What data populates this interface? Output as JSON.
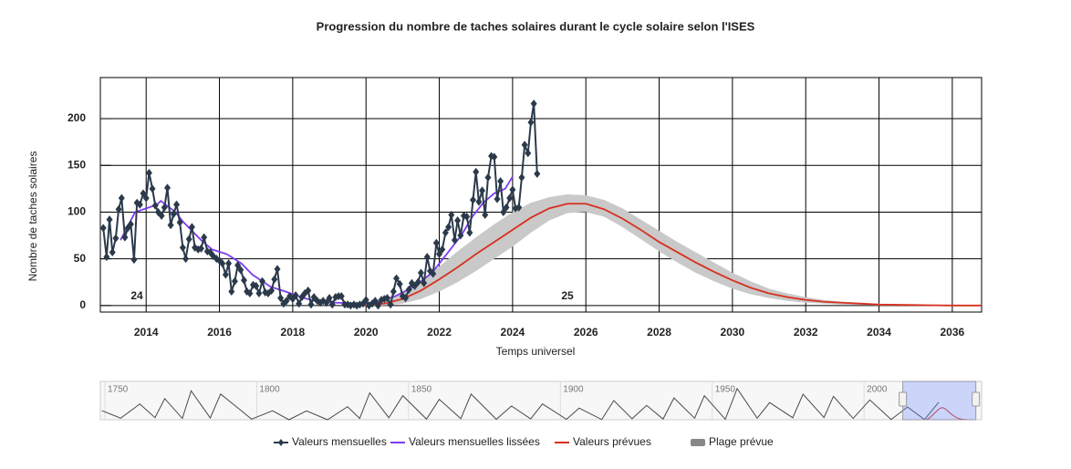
{
  "chart_data": {
    "type": "line",
    "title": "Progression du nombre de taches solaires durant le cycle solaire selon l'ISES",
    "xlabel": "Temps universel",
    "ylabel": "Nombre de taches solaires",
    "xlim": [
      2012.75,
      2036.8
    ],
    "xticks": [
      2014,
      2016,
      2018,
      2020,
      2022,
      2024,
      2026,
      2028,
      2030,
      2032,
      2034,
      2036
    ],
    "ylim": [
      -7,
      244
    ],
    "yticks": [
      0,
      50,
      100,
      150,
      200
    ],
    "grid": true,
    "legend": "bottom",
    "annotations": [
      "24",
      "25"
    ],
    "series": [
      {
        "name": "Valeurs mensuelles",
        "color": "#2b3a4a",
        "marker": "diamond",
        "x": [
          2012.83,
          2012.92,
          2013.0,
          2013.08,
          2013.17,
          2013.25,
          2013.33,
          2013.42,
          2013.5,
          2013.58,
          2013.67,
          2013.75,
          2013.83,
          2013.92,
          2014.0,
          2014.08,
          2014.17,
          2014.25,
          2014.33,
          2014.42,
          2014.5,
          2014.58,
          2014.67,
          2014.75,
          2014.83,
          2014.92,
          2015.0,
          2015.08,
          2015.17,
          2015.25,
          2015.33,
          2015.42,
          2015.5,
          2015.58,
          2015.67,
          2015.75,
          2015.83,
          2015.92,
          2016.0,
          2016.08,
          2016.17,
          2016.25,
          2016.33,
          2016.42,
          2016.5,
          2016.58,
          2016.67,
          2016.75,
          2016.83,
          2016.92,
          2017.0,
          2017.08,
          2017.17,
          2017.25,
          2017.33,
          2017.42,
          2017.5,
          2017.58,
          2017.67,
          2017.75,
          2017.83,
          2017.92,
          2018.0,
          2018.08,
          2018.17,
          2018.25,
          2018.33,
          2018.42,
          2018.5,
          2018.58,
          2018.67,
          2018.75,
          2018.83,
          2018.92,
          2019.0,
          2019.08,
          2019.17,
          2019.25,
          2019.33,
          2019.42,
          2019.5,
          2019.58,
          2019.67,
          2019.75,
          2019.83,
          2019.92,
          2020.0,
          2020.08,
          2020.17,
          2020.25,
          2020.33,
          2020.42,
          2020.5,
          2020.58,
          2020.67,
          2020.75,
          2020.83,
          2020.92,
          2021.0,
          2021.08,
          2021.17,
          2021.25,
          2021.33,
          2021.42,
          2021.5,
          2021.58,
          2021.67,
          2021.75,
          2021.83,
          2021.92,
          2022.0,
          2022.08,
          2022.17,
          2022.25,
          2022.33,
          2022.42,
          2022.5,
          2022.58,
          2022.67,
          2022.75,
          2022.83,
          2022.92,
          2023.0,
          2023.08,
          2023.17,
          2023.25,
          2023.33,
          2023.42,
          2023.5,
          2023.58,
          2023.67,
          2023.75,
          2023.83,
          2023.92,
          2024.0,
          2024.08,
          2024.17,
          2024.25,
          2024.33,
          2024.42,
          2024.5,
          2024.58,
          2024.67
        ],
        "values": [
          83,
          52,
          92,
          57,
          72,
          103,
          115,
          73,
          83,
          87,
          49,
          110,
          108,
          120,
          115,
          142,
          125,
          107,
          100,
          96,
          105,
          126,
          86,
          98,
          108,
          89,
          62,
          50,
          71,
          84,
          62,
          60,
          61,
          73,
          58,
          57,
          53,
          50,
          48,
          45,
          33,
          45,
          15,
          26,
          43,
          38,
          27,
          15,
          13,
          22,
          21,
          13,
          26,
          14,
          13,
          16,
          28,
          39,
          8,
          2,
          5,
          10,
          7,
          11,
          2,
          9,
          13,
          16,
          1,
          9,
          5,
          3,
          5,
          3,
          8,
          1,
          9,
          10,
          10,
          1,
          1,
          0,
          1,
          0,
          1,
          2,
          6,
          0,
          2,
          5,
          0,
          6,
          7,
          8,
          1,
          15,
          29,
          23,
          10,
          8,
          17,
          24,
          21,
          25,
          35,
          24,
          52,
          37,
          34,
          67,
          55,
          60,
          78,
          84,
          97,
          70,
          91,
          75,
          96,
          95,
          78,
          113,
          143,
          111,
          123,
          97,
          137,
          160,
          159,
          114,
          133,
          100,
          105,
          115,
          124,
          104,
          105,
          137,
          172,
          163,
          196,
          216,
          141
        ]
      },
      {
        "name": "Valeurs mensuelles lissées",
        "color": "#7b3cf2",
        "x": [
          2013.3,
          2013.7,
          2014.0,
          2014.3,
          2014.4,
          2014.8,
          2015.0,
          2015.5,
          2015.8,
          2016.2,
          2016.6,
          2016.9,
          2017.4,
          2017.8,
          2018.3,
          2018.7,
          2019.2,
          2019.9,
          2020.3,
          2020.8,
          2021.3,
          2021.8,
          2022.2,
          2022.6,
          2022.9,
          2023.2,
          2023.5,
          2023.8,
          2024.0
        ],
        "values": [
          70,
          100,
          104,
          108,
          112,
          100,
          90,
          70,
          60,
          55,
          45,
          33,
          20,
          15,
          8,
          4,
          3,
          2,
          4,
          10,
          20,
          35,
          55,
          75,
          95,
          110,
          120,
          125,
          138
        ]
      },
      {
        "name": "Valeurs prévues",
        "color": "#d7301f",
        "x": [
          2019.9,
          2020.5,
          2021,
          2021.5,
          2022,
          2022.5,
          2023,
          2023.5,
          2024,
          2024.5,
          2025,
          2025.5,
          2026,
          2026.5,
          2027,
          2027.5,
          2028,
          2028.5,
          2029,
          2029.5,
          2030,
          2030.5,
          2031,
          2031.5,
          2032,
          2032.5,
          2033,
          2034,
          2035,
          2036,
          2036.8
        ],
        "values": [
          0,
          2,
          7,
          16,
          28,
          41,
          55,
          68,
          81,
          94,
          104,
          109,
          109,
          103,
          93,
          81,
          68,
          57,
          46,
          36,
          27,
          19,
          13,
          9,
          6,
          4,
          3,
          1,
          0.5,
          0,
          0
        ]
      },
      {
        "name": "Plage prévue",
        "color": "#c9c9c9",
        "type": "range",
        "x": [
          2019.9,
          2020.5,
          2021,
          2021.5,
          2022,
          2022.5,
          2023,
          2023.5,
          2024,
          2024.5,
          2025,
          2025.5,
          2026,
          2026.5,
          2027,
          2027.5,
          2028,
          2028.5,
          2029,
          2029.5,
          2030,
          2030.5,
          2031,
          2031.5,
          2032,
          2032.5,
          2033,
          2034,
          2035,
          2036,
          2036.8
        ],
        "low": [
          0,
          0,
          2,
          7,
          15,
          25,
          37,
          50,
          63,
          78,
          91,
          99,
          100,
          95,
          84,
          71,
          58,
          46,
          35,
          26,
          18,
          12,
          8,
          5,
          3,
          2,
          1,
          0,
          0,
          0,
          0
        ],
        "high": [
          2,
          6,
          14,
          27,
          42,
          58,
          73,
          87,
          100,
          110,
          116,
          119,
          118,
          113,
          104,
          92,
          80,
          68,
          57,
          46,
          35,
          26,
          18,
          13,
          9,
          6,
          4,
          2,
          1,
          0.5,
          0
        ]
      }
    ],
    "navigator": {
      "color": "#4a4a4a",
      "xlim": [
        1748.5,
        2038.7
      ],
      "xticks": [
        1750,
        1800,
        1850,
        1900,
        1950,
        2000
      ],
      "ylim": [
        0,
        300
      ],
      "x": [
        1749,
        1755.2,
        1761.5,
        1766.5,
        1769.7,
        1775.5,
        1778.4,
        1784.7,
        1788.1,
        1798.3,
        1805.2,
        1810.6,
        1816.4,
        1823.3,
        1829.9,
        1833.9,
        1837.2,
        1843.5,
        1848.1,
        1855.9,
        1860.1,
        1867.2,
        1870.6,
        1878.9,
        1883.9,
        1890.2,
        1894.1,
        1902.0,
        1906.2,
        1913.6,
        1917.6,
        1923.6,
        1928.4,
        1933.8,
        1937.4,
        1944.2,
        1947.4,
        1954.3,
        1958.2,
        1964.8,
        1968.9,
        1976.5,
        1979.9,
        1986.8,
        1989.9,
        1996.4,
        2001.9,
        2008.9,
        2014.3,
        2019.9,
        2024.6
      ],
      "values": [
        83,
        14,
        144,
        19,
        193,
        12,
        264,
        16,
        235,
        6,
        82,
        0,
        81,
        0,
        119,
        12,
        245,
        18,
        220,
        6,
        186,
        10,
        234,
        4,
        125,
        8,
        144,
        4,
        106,
        2,
        175,
        9,
        131,
        6,
        199,
        14,
        219,
        5,
        285,
        14,
        157,
        18,
        233,
        20,
        213,
        12,
        181,
        2,
        116,
        2,
        160
      ]
    }
  }
}
